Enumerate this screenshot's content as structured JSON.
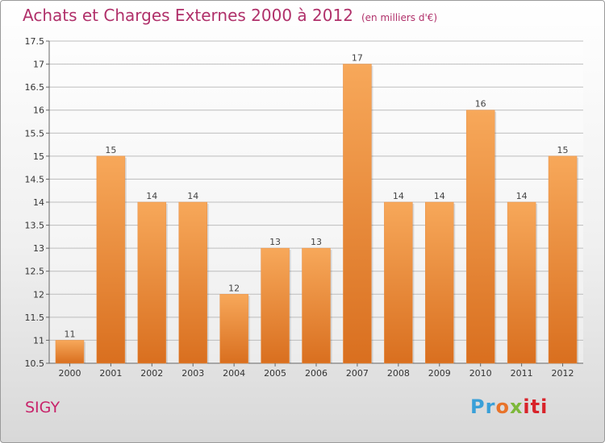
{
  "header": {
    "title": "Achats et Charges Externes 2000 à 2012",
    "unit": "(en milliers d'€)"
  },
  "footer": {
    "town": "SIGY",
    "logo": "Proxiti"
  },
  "colors": {
    "title": "#b0306a",
    "bar_top": "#f7a85a",
    "bar_bottom": "#d96f1f",
    "town": "#c8236a"
  },
  "chart_data": {
    "type": "bar",
    "title": "Achats et Charges Externes 2000 à 2012",
    "subtitle": "(en milliers d'€)",
    "xlabel": "",
    "ylabel": "",
    "categories": [
      "2000",
      "2001",
      "2002",
      "2003",
      "2004",
      "2005",
      "2006",
      "2007",
      "2008",
      "2009",
      "2010",
      "2011",
      "2012"
    ],
    "values": [
      11,
      15,
      14,
      14,
      12,
      13,
      13,
      17,
      14,
      14,
      16,
      14,
      15
    ],
    "ylim": [
      10.5,
      17.5
    ],
    "yticks": [
      "10.5",
      "11",
      "11.5",
      "12",
      "12.5",
      "13",
      "13.5",
      "14",
      "14.5",
      "15",
      "15.5",
      "16",
      "16.5",
      "17",
      "17.5"
    ],
    "grid": true,
    "legend": "none"
  }
}
